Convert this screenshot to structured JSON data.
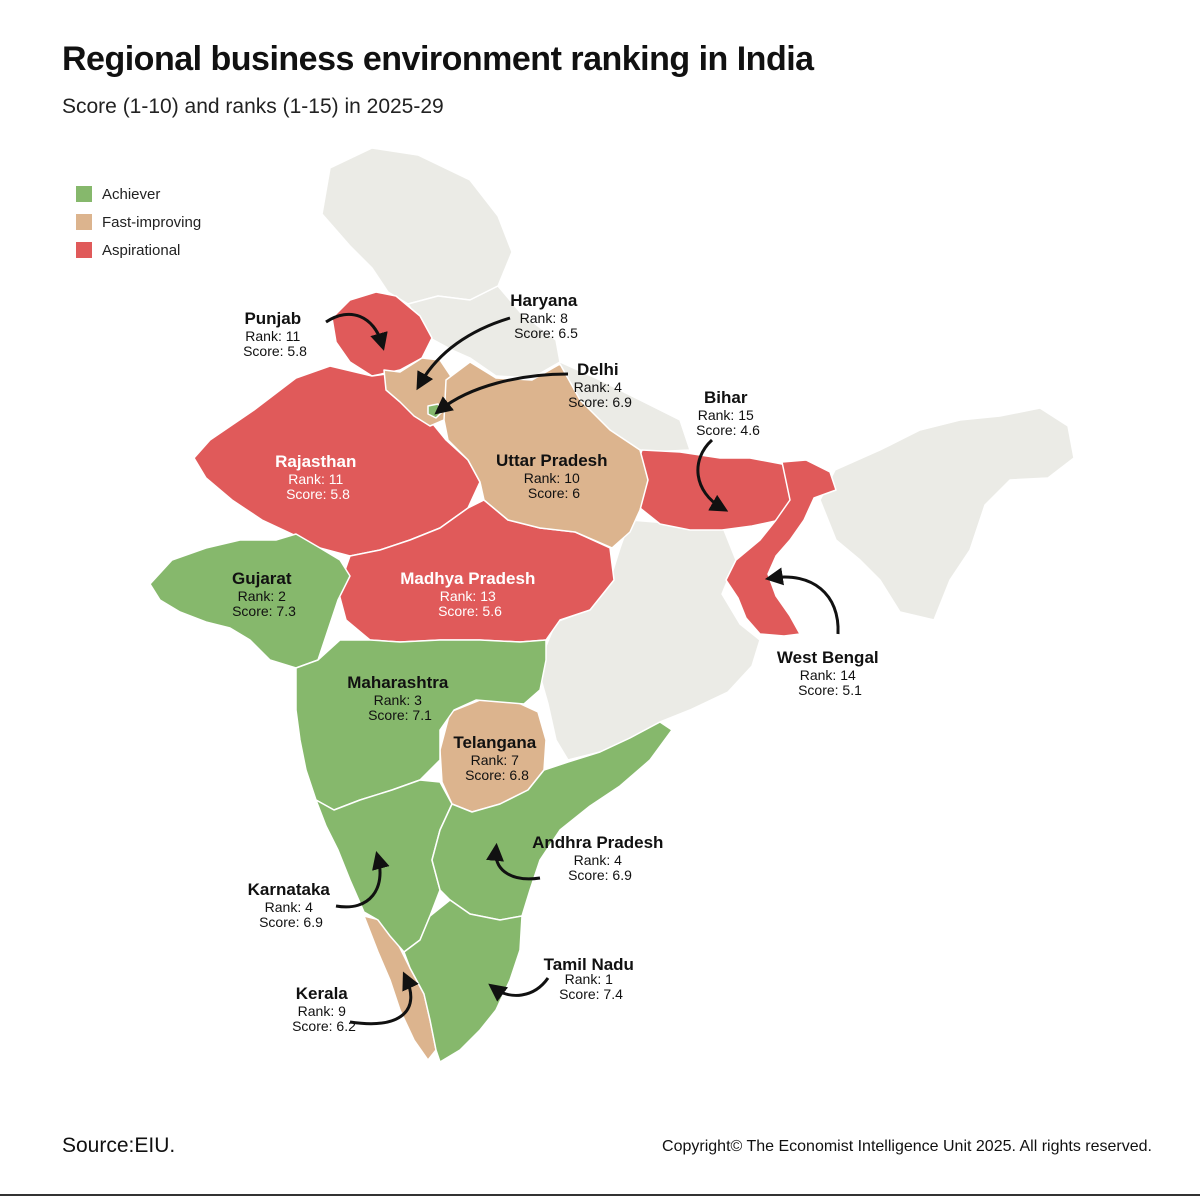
{
  "title": "Regional business environment ranking in India",
  "subtitle": "Score (1-10) and ranks (1-15) in 2025-29",
  "legend": [
    {
      "label": "Achiever",
      "color": "#86b86c"
    },
    {
      "label": "Fast-improving",
      "color": "#dcb48e"
    },
    {
      "label": "Aspirational",
      "color": "#e05a5a"
    }
  ],
  "colors": {
    "other_states": "#ebebe6",
    "border": "#ffffff",
    "arrow": "#111111"
  },
  "states": [
    {
      "name": "Punjab",
      "rank": "Rank: 11",
      "score": "Score: 5.8",
      "category": "Aspirational"
    },
    {
      "name": "Haryana",
      "rank": "Rank: 8",
      "score": "Score: 6.5",
      "category": "Fast-improving"
    },
    {
      "name": "Delhi",
      "rank": "Rank: 4",
      "score": "Score: 6.9",
      "category": "Achiever"
    },
    {
      "name": "Rajasthan",
      "rank": "Rank: 11",
      "score": "Score: 5.8",
      "category": "Aspirational"
    },
    {
      "name": "Uttar Pradesh",
      "rank": "Rank: 10",
      "score": "Score: 6",
      "category": "Fast-improving"
    },
    {
      "name": "Bihar",
      "rank": "Rank: 15",
      "score": "Score: 4.6",
      "category": "Aspirational"
    },
    {
      "name": "Gujarat",
      "rank": "Rank: 2",
      "score": "Score: 7.3",
      "category": "Achiever"
    },
    {
      "name": "Madhya Pradesh",
      "rank": "Rank: 13",
      "score": "Score: 5.6",
      "category": "Aspirational"
    },
    {
      "name": "West Bengal",
      "rank": "Rank: 14",
      "score": "Score: 5.1",
      "category": "Aspirational"
    },
    {
      "name": "Maharashtra",
      "rank": "Rank: 3",
      "score": "Score: 7.1",
      "category": "Achiever"
    },
    {
      "name": "Telangana",
      "rank": "Rank: 7",
      "score": "Score: 6.8",
      "category": "Fast-improving"
    },
    {
      "name": "Andhra Pradesh",
      "rank": "Rank: 4",
      "score": "Score: 6.9",
      "category": "Achiever"
    },
    {
      "name": "Karnataka",
      "rank": "Rank: 4",
      "score": "Score: 6.9",
      "category": "Achiever"
    },
    {
      "name": "Tamil Nadu",
      "rank": "Rank: 1",
      "score": "Score: 7.4",
      "category": "Achiever"
    },
    {
      "name": "Kerala",
      "rank": "Rank: 9",
      "score": "Score: 6.2",
      "category": "Fast-improving"
    }
  ],
  "footer": {
    "source": "Source:EIU.",
    "copyright": "Copyright© The Economist Intelligence Unit 2025. All rights reserved."
  }
}
